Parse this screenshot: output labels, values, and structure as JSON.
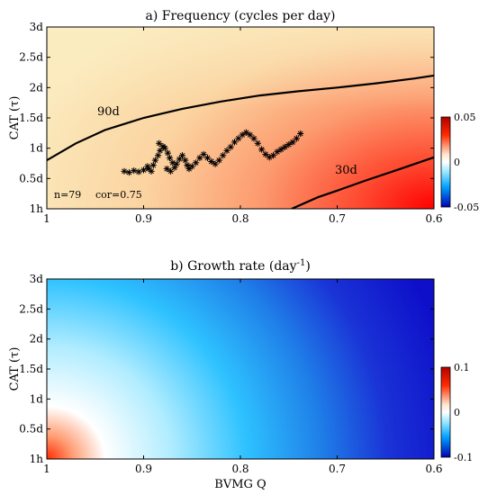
{
  "chart_data": [
    {
      "type": "heatmap",
      "title": "a) Frequency (cycles per day)",
      "xlabel": "",
      "ylabel": "CAT (τ)",
      "x_reversed": true,
      "xlim": [
        1,
        0.6
      ],
      "ylim": [
        0,
        3
      ],
      "x_ticks": [
        1,
        0.9,
        0.8,
        0.7,
        0.6
      ],
      "x_tick_labels": [
        "1",
        "0.9",
        "0.8",
        "0.7",
        "0.6"
      ],
      "y_tick_labels": [
        "1h",
        "0.5d",
        "1d",
        "1.5d",
        "2d",
        "2.5d",
        "3d"
      ],
      "colorbar": {
        "min": -0.05,
        "max": 0.05,
        "tick_labels": [
          "0.05",
          "0",
          "-0.05"
        ]
      },
      "contours": [
        {
          "label": "90d",
          "points": [
            [
              1.0,
              0.8
            ],
            [
              0.97,
              1.08
            ],
            [
              0.94,
              1.3
            ],
            [
              0.9,
              1.5
            ],
            [
              0.86,
              1.65
            ],
            [
              0.82,
              1.77
            ],
            [
              0.78,
              1.87
            ],
            [
              0.74,
              1.94
            ],
            [
              0.7,
              2.0
            ],
            [
              0.66,
              2.07
            ],
            [
              0.62,
              2.15
            ],
            [
              0.6,
              2.2
            ]
          ]
        },
        {
          "label": "30d",
          "points": [
            [
              0.747,
              0.0
            ],
            [
              0.72,
              0.19
            ],
            [
              0.7,
              0.3
            ],
            [
              0.67,
              0.47
            ],
            [
              0.64,
              0.63
            ],
            [
              0.62,
              0.74
            ],
            [
              0.6,
              0.85
            ]
          ]
        }
      ],
      "scatter": {
        "marker": "*",
        "points": [
          [
            0.92,
            0.62
          ],
          [
            0.915,
            0.6
          ],
          [
            0.91,
            0.63
          ],
          [
            0.905,
            0.61
          ],
          [
            0.9,
            0.64
          ],
          [
            0.895,
            0.66
          ],
          [
            0.89,
            0.72
          ],
          [
            0.888,
            0.8
          ],
          [
            0.885,
            0.88
          ],
          [
            0.883,
            0.96
          ],
          [
            0.88,
            1.03
          ],
          [
            0.884,
            1.08
          ],
          [
            0.878,
            1.0
          ],
          [
            0.875,
            0.92
          ],
          [
            0.873,
            0.84
          ],
          [
            0.87,
            0.76
          ],
          [
            0.868,
            0.68
          ],
          [
            0.866,
            0.74
          ],
          [
            0.863,
            0.82
          ],
          [
            0.86,
            0.88
          ],
          [
            0.857,
            0.8
          ],
          [
            0.855,
            0.72
          ],
          [
            0.853,
            0.66
          ],
          [
            0.85,
            0.7
          ],
          [
            0.846,
            0.76
          ],
          [
            0.842,
            0.84
          ],
          [
            0.838,
            0.9
          ],
          [
            0.834,
            0.84
          ],
          [
            0.83,
            0.78
          ],
          [
            0.826,
            0.74
          ],
          [
            0.822,
            0.8
          ],
          [
            0.818,
            0.88
          ],
          [
            0.814,
            0.96
          ],
          [
            0.81,
            1.02
          ],
          [
            0.806,
            1.1
          ],
          [
            0.802,
            1.16
          ],
          [
            0.798,
            1.22
          ],
          [
            0.794,
            1.26
          ],
          [
            0.79,
            1.22
          ],
          [
            0.786,
            1.16
          ],
          [
            0.782,
            1.08
          ],
          [
            0.778,
            0.98
          ],
          [
            0.774,
            0.9
          ],
          [
            0.77,
            0.85
          ],
          [
            0.766,
            0.88
          ],
          [
            0.762,
            0.94
          ],
          [
            0.758,
            0.98
          ],
          [
            0.754,
            1.02
          ],
          [
            0.75,
            1.06
          ],
          [
            0.746,
            1.1
          ],
          [
            0.742,
            1.16
          ],
          [
            0.738,
            1.24
          ],
          [
            0.896,
            0.7
          ],
          [
            0.892,
            0.62
          ],
          [
            0.876,
            0.66
          ],
          [
            0.872,
            0.62
          ]
        ]
      },
      "annotations": [
        "n=79",
        "cor=0.75"
      ],
      "colormap": [
        "#ff0000",
        "#fe7a50",
        "#fbd3a0",
        "#fbe8b8"
      ]
    },
    {
      "type": "heatmap",
      "title": "b) Growth rate (day",
      "title_superscript": "-1",
      "title_suffix": ")",
      "xlabel": "BVMG Q",
      "ylabel": "CAT (τ)",
      "x_reversed": true,
      "xlim": [
        1,
        0.6
      ],
      "ylim": [
        0,
        3
      ],
      "x_ticks": [
        1,
        0.9,
        0.8,
        0.7,
        0.6
      ],
      "x_tick_labels": [
        "1",
        "0.9",
        "0.8",
        "0.7",
        "0.6"
      ],
      "y_tick_labels": [
        "1h",
        "0.5d",
        "1d",
        "1.5d",
        "2d",
        "2.5d",
        "3d"
      ],
      "colorbar": {
        "min": -0.1,
        "max": 0.1,
        "tick_labels": [
          "0.1",
          "0",
          "-0.1"
        ]
      },
      "colormap": [
        "#ff0000",
        "#ffffff",
        "#00bfff",
        "#1b1bd6",
        "#0d0dc8"
      ]
    }
  ]
}
